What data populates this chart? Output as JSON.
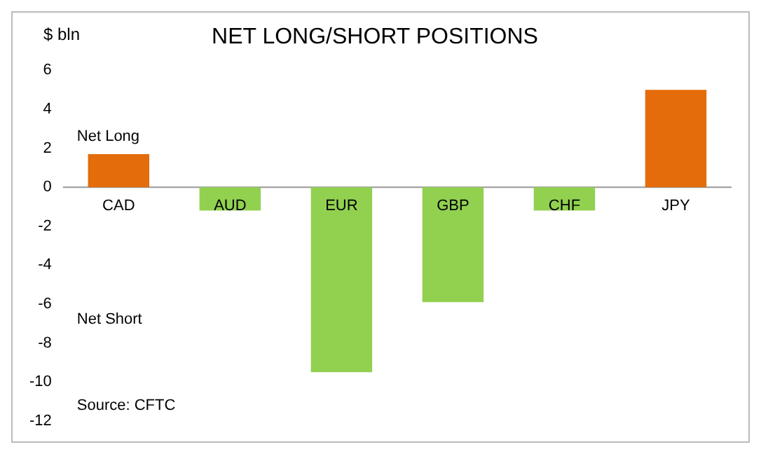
{
  "chart_data": {
    "type": "bar",
    "title": "NET LONG/SHORT POSITIONS",
    "ylabel": "$ bln",
    "categories": [
      "CAD",
      "AUD",
      "EUR",
      "GBP",
      "CHF",
      "JPY"
    ],
    "values": [
      1.7,
      -1.2,
      -9.5,
      -5.9,
      -1.2,
      5.0
    ],
    "colors": [
      "#e46c0a",
      "#92d050",
      "#92d050",
      "#92d050",
      "#92d050",
      "#e46c0a"
    ],
    "ylim": [
      -12,
      6
    ],
    "yticks": [
      -12,
      -10,
      -8,
      -6,
      -4,
      -2,
      0,
      2,
      4,
      6
    ],
    "grid": false,
    "legend": false,
    "annotations": [
      "Net Long",
      "Net Short",
      "Source: CFTC"
    ]
  }
}
